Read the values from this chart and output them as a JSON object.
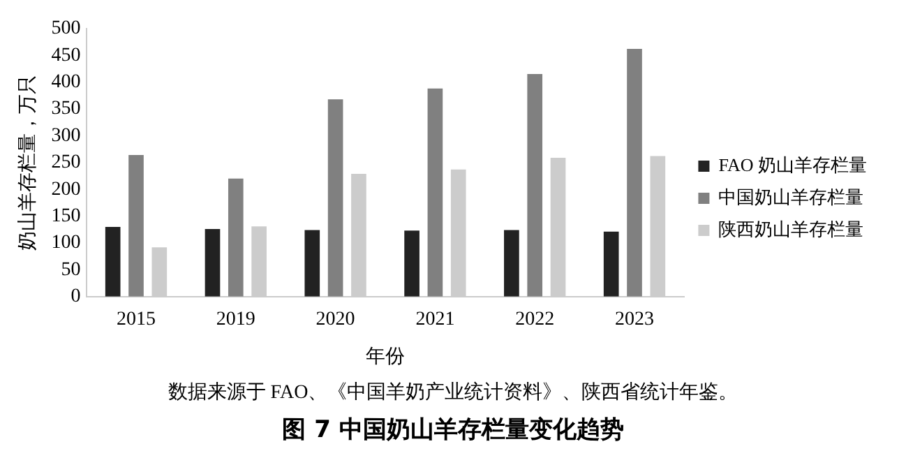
{
  "chart_data": {
    "type": "bar",
    "title": "图 7  中国奶山羊存栏量变化趋势",
    "xlabel": "年份",
    "ylabel": "奶山羊存栏量，万只",
    "annotations": [
      "数据来源于 FAO、《中国羊奶产业统计资料》、陕西省统计年鉴。"
    ],
    "categories": [
      "2015",
      "2019",
      "2020",
      "2021",
      "2022",
      "2023"
    ],
    "series": [
      {
        "name": "FAO 奶山羊存栏量",
        "color": "#222222",
        "values": [
          130,
          126,
          124,
          123,
          124,
          121
        ]
      },
      {
        "name": "中国奶山羊存栏量",
        "color": "#808080",
        "values": [
          264,
          220,
          368,
          388,
          415,
          462
        ]
      },
      {
        "name": "陕西奶山羊存栏量",
        "color": "#cccccc",
        "values": [
          92,
          131,
          229,
          237,
          259,
          262
        ]
      }
    ],
    "ylim": [
      0,
      500
    ],
    "yticks": [
      0,
      50,
      100,
      150,
      200,
      250,
      300,
      350,
      400,
      450,
      500
    ],
    "grid": false,
    "legend": "right"
  }
}
